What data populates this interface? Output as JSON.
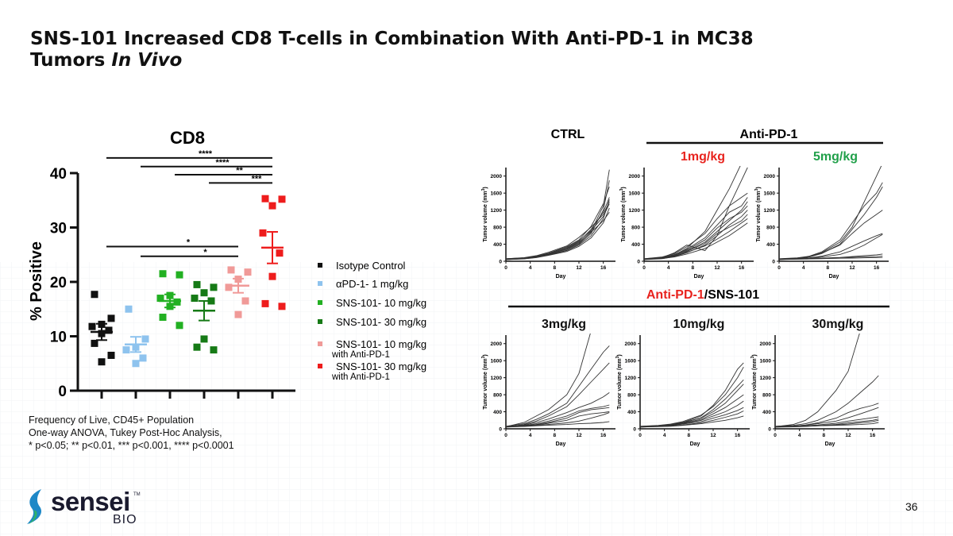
{
  "title_line1": "SNS-101 Increased CD8 T-cells in Combination With Anti-PD-1 in MC38",
  "title_line2_plain": "Tumors ",
  "title_line2_italic": "In Vivo",
  "footnote": {
    "line1": "Frequency of Live, CD45+ Population",
    "line2": "One-way ANOVA, Tukey Post-Hoc Analysis,",
    "line3": "* p<0.05; ** p<0.01, *** p<0.001, **** p<0.0001"
  },
  "logo": {
    "name": "sensei",
    "sub": "BIO",
    "tm": "TM"
  },
  "page_number": "36",
  "colors": {
    "isotype": "#111111",
    "pd1": "#8ec3ee",
    "sns10": "#22b022",
    "sns30": "#167a16",
    "combo10": "#f09a98",
    "combo30": "#ee1c1c",
    "red_label": "#e8231e",
    "green_label": "#21a04a"
  },
  "chart_data": [
    {
      "type": "scatter",
      "title": "CD8",
      "ylabel": "% Positive",
      "xlabel": "",
      "ylim": [
        0,
        40
      ],
      "yticks": [
        0,
        10,
        20,
        30,
        40
      ],
      "grid": false,
      "legend_position": "right",
      "groups": [
        {
          "name": "Isotype Control",
          "extra": "",
          "color_key": "isotype",
          "mean": 10.8,
          "sem": 1.5,
          "points": [
            17.7,
            13.3,
            12.2,
            11.8,
            11.1,
            10.5,
            8.7,
            6.5,
            5.3
          ]
        },
        {
          "name": "αPD-1- 1 mg/kg",
          "extra": "",
          "color_key": "pd1",
          "mean": 8.5,
          "sem": 1.4,
          "points": [
            15.0,
            9.5,
            8.0,
            7.5,
            6.0,
            5.0
          ]
        },
        {
          "name": "SNS-101- 10 mg/kg",
          "extra": "",
          "color_key": "sns10",
          "mean": 16.5,
          "sem": 1.2,
          "points": [
            21.3,
            21.5,
            17.5,
            17.0,
            16.3,
            15.5,
            13.5,
            12.0
          ]
        },
        {
          "name": "SNS-101- 30 mg/kg",
          "extra": "",
          "color_key": "sns30",
          "mean": 14.7,
          "sem": 1.8,
          "points": [
            19.5,
            19.0,
            18.0,
            17.0,
            16.5,
            9.5,
            8.0,
            7.5
          ]
        },
        {
          "name": "SNS-101- 10 mg/kg",
          "extra": "with Anti-PD-1",
          "color_key": "combo10",
          "mean": 19.3,
          "sem": 1.3,
          "points": [
            22.2,
            21.8,
            20.5,
            19.0,
            16.5,
            14.0
          ]
        },
        {
          "name": "SNS-101- 30 mg/kg",
          "extra": "with Anti-PD-1",
          "color_key": "combo30",
          "mean": 26.3,
          "sem": 2.9,
          "points": [
            35.2,
            35.3,
            34.0,
            29.0,
            25.3,
            21.0,
            16.0,
            15.5
          ]
        }
      ],
      "significance": [
        {
          "from": 0,
          "to": 5,
          "label": "****",
          "y": 42.8
        },
        {
          "from": 1,
          "to": 5,
          "label": "****",
          "y": 41.2
        },
        {
          "from": 2,
          "to": 5,
          "label": "**",
          "y": 39.7
        },
        {
          "from": 3,
          "to": 5,
          "label": "***",
          "y": 38.2
        },
        {
          "from": 0,
          "to": 4,
          "label": "*",
          "y": 26.5
        },
        {
          "from": 1,
          "to": 4,
          "label": "*",
          "y": 24.7
        }
      ]
    },
    {
      "type": "line",
      "panel_title": "CTRL",
      "xlabel": "Day",
      "ylabel": "Tumor volume (mm3)",
      "ylabel_main": "Tumor volume (mm",
      "ylabel_sup": "3",
      "ylabel_close": ")",
      "xlim": [
        0,
        18
      ],
      "ylim": [
        0,
        2200
      ],
      "xticks": [
        0,
        4,
        8,
        12,
        16
      ],
      "yticks": [
        0,
        400,
        800,
        1200,
        1600,
        2000
      ],
      "x": [
        0,
        3,
        5,
        7,
        10,
        12,
        14,
        16,
        17
      ],
      "series": [
        {
          "values": [
            50,
            70,
            100,
            160,
            280,
            420,
            700,
            1300,
            2150
          ]
        },
        {
          "values": [
            40,
            60,
            90,
            150,
            260,
            400,
            650,
            1200,
            1900
          ]
        },
        {
          "values": [
            60,
            80,
            120,
            190,
            340,
            500,
            820,
            1350,
            1750
          ]
        },
        {
          "values": [
            50,
            70,
            110,
            170,
            300,
            460,
            750,
            1150,
            1500
          ]
        },
        {
          "values": [
            45,
            60,
            95,
            150,
            250,
            380,
            600,
            1000,
            1450
          ]
        },
        {
          "values": [
            55,
            75,
            115,
            180,
            320,
            480,
            720,
            1050,
            1350
          ]
        },
        {
          "values": [
            40,
            55,
            85,
            140,
            230,
            350,
            550,
            900,
            1250
          ]
        },
        {
          "values": [
            60,
            85,
            130,
            210,
            360,
            560,
            800,
            1100,
            1400
          ]
        },
        {
          "values": [
            50,
            65,
            100,
            160,
            290,
            440,
            680,
            950,
            1150
          ]
        }
      ]
    },
    {
      "type": "line",
      "panel_title": "1mg/kg",
      "xlabel": "Day",
      "ylabel": "Tumor volume (mm3)",
      "ylabel_main": "Tumor volume (mm",
      "ylabel_sup": "3",
      "ylabel_close": ")",
      "xlim": [
        0,
        18
      ],
      "ylim": [
        0,
        2200
      ],
      "xticks": [
        0,
        4,
        8,
        12,
        16
      ],
      "yticks": [
        0,
        400,
        800,
        1200,
        1600,
        2000
      ],
      "x": [
        0,
        3,
        5,
        7,
        10,
        12,
        14,
        16,
        17
      ],
      "series": [
        {
          "values": [
            50,
            80,
            150,
            300,
            700,
            1200,
            1700,
            2300,
            2300
          ]
        },
        {
          "values": [
            40,
            90,
            200,
            380,
            250,
            600,
            1300,
            1900,
            2200
          ]
        },
        {
          "values": [
            60,
            100,
            180,
            340,
            650,
            1000,
            1300,
            1500,
            1600
          ]
        },
        {
          "values": [
            50,
            90,
            160,
            280,
            550,
            850,
            1150,
            1300,
            1500
          ]
        },
        {
          "values": [
            45,
            70,
            130,
            240,
            450,
            700,
            950,
            1200,
            1400
          ]
        },
        {
          "values": [
            55,
            85,
            150,
            260,
            500,
            780,
            1000,
            1150,
            1300
          ]
        },
        {
          "values": [
            40,
            60,
            110,
            200,
            380,
            600,
            850,
            1050,
            1200
          ]
        },
        {
          "values": [
            60,
            90,
            140,
            230,
            420,
            650,
            800,
            950,
            1100
          ]
        },
        {
          "values": [
            50,
            70,
            120,
            210,
            360,
            520,
            700,
            900,
            1000
          ]
        },
        {
          "values": [
            45,
            65,
            100,
            170,
            300,
            450,
            600,
            800,
            900
          ]
        }
      ]
    },
    {
      "type": "line",
      "panel_title": "5mg/kg",
      "xlabel": "Day",
      "ylabel": "Tumor volume (mm3)",
      "ylabel_main": "Tumor volume (mm",
      "ylabel_sup": "3",
      "ylabel_close": ")",
      "xlim": [
        0,
        18
      ],
      "ylim": [
        0,
        2200
      ],
      "xticks": [
        0,
        4,
        8,
        12,
        16
      ],
      "yticks": [
        0,
        400,
        800,
        1200,
        1600,
        2000
      ],
      "x": [
        0,
        3,
        5,
        7,
        10,
        12,
        14,
        16,
        17
      ],
      "series": [
        {
          "values": [
            50,
            70,
            110,
            200,
            450,
            800,
            1400,
            2000,
            2300
          ]
        },
        {
          "values": [
            60,
            80,
            120,
            220,
            500,
            900,
            1300,
            1600,
            1850
          ]
        },
        {
          "values": [
            40,
            60,
            100,
            180,
            400,
            750,
            1100,
            1500,
            1750
          ]
        },
        {
          "values": [
            55,
            75,
            110,
            190,
            380,
            650,
            900,
            1100,
            1200
          ]
        },
        {
          "values": [
            50,
            60,
            80,
            120,
            220,
            350,
            480,
            600,
            650
          ]
        },
        {
          "values": [
            45,
            55,
            70,
            100,
            160,
            250,
            380,
            550,
            630
          ]
        },
        {
          "values": [
            40,
            50,
            60,
            70,
            90,
            110,
            130,
            150,
            170
          ]
        },
        {
          "values": [
            50,
            55,
            65,
            75,
            85,
            95,
            100,
            110,
            120
          ]
        },
        {
          "values": [
            45,
            50,
            55,
            60,
            70,
            75,
            80,
            85,
            90
          ]
        }
      ]
    },
    {
      "type": "line",
      "panel_title": "3mg/kg",
      "xlabel": "Day",
      "ylabel": "Tumor volume (mm3)",
      "ylabel_main": "Tumor volume (mm",
      "ylabel_sup": "3",
      "ylabel_close": ")",
      "xlim": [
        0,
        18
      ],
      "ylim": [
        0,
        2200
      ],
      "xticks": [
        0,
        4,
        8,
        12,
        16
      ],
      "yticks": [
        0,
        400,
        800,
        1200,
        1600,
        2000
      ],
      "x": [
        0,
        3,
        5,
        7,
        10,
        12,
        14,
        16,
        17
      ],
      "series": [
        {
          "values": [
            50,
            150,
            300,
            450,
            800,
            1300,
            2300,
            2300,
            2300
          ]
        },
        {
          "values": [
            60,
            120,
            220,
            350,
            600,
            1000,
            1400,
            1800,
            1950
          ]
        },
        {
          "values": [
            40,
            100,
            180,
            300,
            520,
            800,
            1100,
            1400,
            1550
          ]
        },
        {
          "values": [
            55,
            90,
            150,
            230,
            380,
            500,
            600,
            750,
            850
          ]
        },
        {
          "values": [
            50,
            80,
            120,
            180,
            300,
            420,
            480,
            520,
            560
          ]
        },
        {
          "values": [
            45,
            70,
            100,
            150,
            250,
            380,
            450,
            480,
            500
          ]
        },
        {
          "values": [
            40,
            60,
            90,
            130,
            200,
            300,
            350,
            380,
            400
          ]
        },
        {
          "values": [
            50,
            60,
            80,
            100,
            140,
            180,
            250,
            330,
            380
          ]
        },
        {
          "values": [
            45,
            55,
            70,
            85,
            100,
            120,
            130,
            150,
            170
          ]
        }
      ]
    },
    {
      "type": "line",
      "panel_title": "10mg/kg",
      "xlabel": "Day",
      "ylabel": "Tumor volume (mm3)",
      "ylabel_main": "Tumor volume (mm",
      "ylabel_sup": "3",
      "ylabel_close": ")",
      "xlim": [
        0,
        18
      ],
      "ylim": [
        0,
        2200
      ],
      "xticks": [
        0,
        4,
        8,
        12,
        16
      ],
      "yticks": [
        0,
        400,
        800,
        1200,
        1600,
        2000
      ],
      "x": [
        0,
        3,
        5,
        7,
        10,
        12,
        14,
        16,
        17
      ],
      "series": [
        {
          "values": [
            50,
            70,
            100,
            150,
            300,
            550,
            900,
            1400,
            1550
          ]
        },
        {
          "values": [
            60,
            80,
            110,
            170,
            320,
            520,
            800,
            1200,
            1450
          ]
        },
        {
          "values": [
            40,
            60,
            90,
            140,
            260,
            450,
            700,
            1000,
            1150
          ]
        },
        {
          "values": [
            55,
            75,
            105,
            150,
            250,
            400,
            600,
            900,
            1050
          ]
        },
        {
          "values": [
            50,
            65,
            90,
            130,
            220,
            350,
            500,
            700,
            800
          ]
        },
        {
          "values": [
            45,
            60,
            80,
            120,
            200,
            300,
            400,
            550,
            650
          ]
        },
        {
          "values": [
            40,
            55,
            75,
            110,
            170,
            250,
            330,
            430,
            500
          ]
        },
        {
          "values": [
            50,
            55,
            65,
            90,
            140,
            200,
            270,
            350,
            420
          ]
        },
        {
          "values": [
            45,
            50,
            60,
            80,
            120,
            160,
            200,
            260,
            300
          ]
        }
      ]
    },
    {
      "type": "line",
      "panel_title": "30mg/kg",
      "xlabel": "Day",
      "ylabel": "Tumor volume (mm3)",
      "ylabel_main": "Tumor volume (mm",
      "ylabel_sup": "3",
      "ylabel_close": ")",
      "xlim": [
        0,
        18
      ],
      "ylim": [
        0,
        2200
      ],
      "xticks": [
        0,
        4,
        8,
        12,
        16
      ],
      "yticks": [
        0,
        400,
        800,
        1200,
        1600,
        2000
      ],
      "x": [
        0,
        3,
        5,
        7,
        10,
        12,
        14,
        16,
        17
      ],
      "series": [
        {
          "values": [
            50,
            100,
            200,
            400,
            900,
            1350,
            2300,
            2300,
            2300
          ]
        },
        {
          "values": [
            60,
            80,
            120,
            200,
            400,
            600,
            850,
            1100,
            1250
          ]
        },
        {
          "values": [
            40,
            60,
            90,
            140,
            250,
            380,
            480,
            550,
            600
          ]
        },
        {
          "values": [
            55,
            65,
            85,
            120,
            180,
            260,
            350,
            450,
            500
          ]
        },
        {
          "values": [
            50,
            55,
            70,
            90,
            130,
            180,
            220,
            260,
            280
          ]
        },
        {
          "values": [
            45,
            50,
            60,
            75,
            100,
            140,
            170,
            200,
            230
          ]
        },
        {
          "values": [
            40,
            45,
            55,
            70,
            90,
            110,
            140,
            170,
            200
          ]
        },
        {
          "values": [
            50,
            55,
            60,
            70,
            80,
            90,
            100,
            120,
            150
          ]
        }
      ]
    }
  ],
  "panel_groups": {
    "ctrl_header": "CTRL",
    "anti_pd1_header": "Anti-PD-1",
    "combo_header_red": "Anti-PD-1",
    "combo_header_rest": "/SNS-101"
  }
}
